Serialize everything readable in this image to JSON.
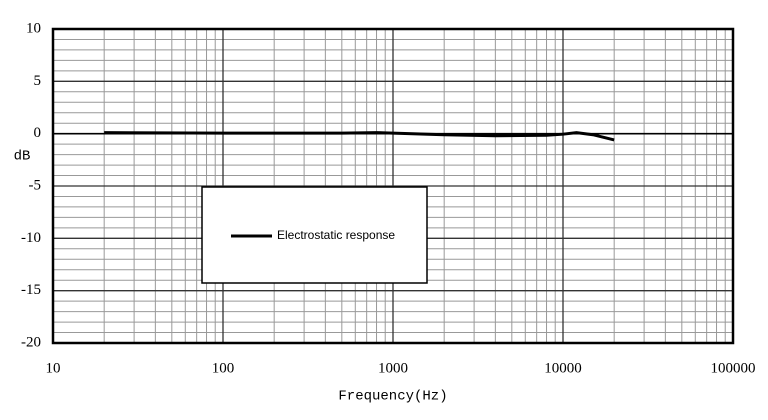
{
  "chart_data": {
    "type": "line",
    "x_label": "Frequency(Hz)",
    "y_label": "dB",
    "x_scale": "log",
    "grid": true,
    "minor_grid": true,
    "xlim": [
      10,
      100000
    ],
    "xticks": [
      10,
      100,
      1000,
      10000,
      100000
    ],
    "ylim": [
      -20,
      10
    ],
    "yticks": [
      -20,
      -15,
      -10,
      -5,
      0,
      5,
      10
    ],
    "legend_position": "center-left",
    "series": [
      {
        "name": "Electrostatic response",
        "color": "#000000",
        "x": [
          20,
          100,
          500,
          800,
          1000,
          2000,
          4000,
          8000,
          10000,
          12000,
          15000,
          20000
        ],
        "values": [
          0.1,
          0.05,
          0.05,
          0.1,
          0.05,
          -0.1,
          -0.2,
          -0.15,
          -0.05,
          0.1,
          -0.1,
          -0.6
        ]
      }
    ]
  }
}
